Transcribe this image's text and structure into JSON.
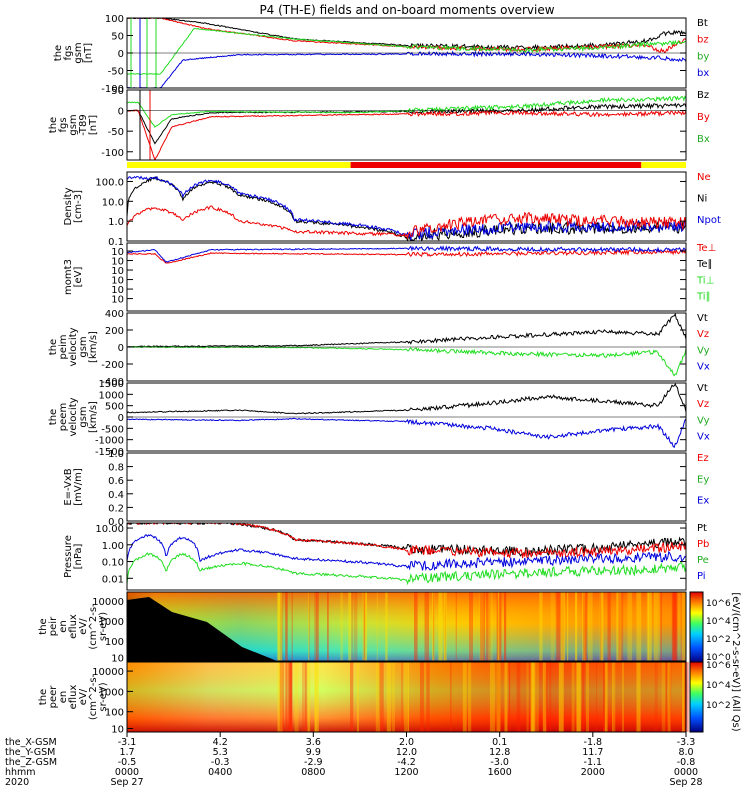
{
  "title": "P4 (TH-E) fields and on-board moments overview",
  "colors": {
    "black": "#000000",
    "red": "#ee0000",
    "green": "#22dd22",
    "blue": "#0000dd",
    "yellow": "#ffff00",
    "barred": "#ee0000"
  },
  "chart_data": {
    "type": "line",
    "panels": [
      {
        "id": "fgs-gsm",
        "ylabel": [
          "the",
          "fgs",
          "gsm",
          "[nT]"
        ],
        "ylim": [
          -100,
          100
        ],
        "ticks": [
          "100",
          "50",
          "0",
          "-50",
          "-100"
        ],
        "tickvals": [
          100,
          50,
          0,
          -50,
          -100
        ],
        "log": false,
        "legend": [
          {
            "label": "Bt",
            "color": "#000000"
          },
          {
            "label": "bz",
            "color": "#ee0000"
          },
          {
            "label": "by",
            "color": "#22aa22"
          },
          {
            "label": "bx",
            "color": "#0000dd"
          }
        ],
        "series": [
          {
            "name": "Bt",
            "color": "#000000",
            "t": [
              0.06,
              0.14,
              0.3,
              0.5,
              0.7,
              0.85,
              0.93,
              0.96,
              1.0
            ],
            "y": [
              100,
              85,
              40,
              22,
              15,
              22,
              35,
              55,
              60
            ]
          },
          {
            "name": "bz",
            "color": "#ee0000",
            "t": [
              0.06,
              0.14,
              0.3,
              0.5,
              0.7,
              0.85,
              0.93,
              0.96,
              1.0
            ],
            "y": [
              100,
              70,
              35,
              18,
              10,
              18,
              20,
              5,
              40
            ]
          },
          {
            "name": "by",
            "color": "#22dd22",
            "t": [
              0.06,
              0.12,
              0.3,
              0.5,
              0.7,
              0.85,
              0.93,
              1.0
            ],
            "y": [
              -60,
              70,
              40,
              18,
              8,
              15,
              25,
              30
            ]
          },
          {
            "name": "bx",
            "color": "#0000dd",
            "t": [
              0.06,
              0.1,
              0.2,
              0.5,
              0.7,
              0.85,
              0.93,
              1.0
            ],
            "y": [
              -100,
              -20,
              -5,
              -3,
              -2,
              -8,
              -12,
              -20
            ]
          }
        ]
      },
      {
        "id": "fgs-gsm-reduced",
        "ylabel": [
          "the",
          "fgs",
          "gsm",
          "-T89",
          "[nT]"
        ],
        "ylim": [
          -120,
          50
        ],
        "ticks": [
          "50",
          "0",
          "-50",
          "-100"
        ],
        "tickvals": [
          50,
          0,
          -50,
          -100
        ],
        "log": false,
        "legend": [
          {
            "label": "Bz",
            "color": "#000000"
          },
          {
            "label": "By",
            "color": "#ee0000"
          },
          {
            "label": "Bx",
            "color": "#22aa22"
          }
        ],
        "series": [
          {
            "name": "Bz",
            "color": "#000000",
            "t": [
              0.02,
              0.05,
              0.08,
              0.15,
              0.4,
              0.7,
              0.85,
              1.0
            ],
            "y": [
              0,
              -80,
              -20,
              -5,
              -3,
              0,
              10,
              12
            ]
          },
          {
            "name": "By",
            "color": "#ee0000",
            "t": [
              0.02,
              0.05,
              0.08,
              0.15,
              0.4,
              0.7,
              0.85,
              1.0
            ],
            "y": [
              0,
              -120,
              -40,
              -15,
              -10,
              -5,
              -10,
              -5
            ]
          },
          {
            "name": "Bx",
            "color": "#22dd22",
            "t": [
              0.02,
              0.05,
              0.08,
              0.15,
              0.4,
              0.7,
              0.85,
              1.0
            ],
            "y": [
              20,
              -40,
              -10,
              -2,
              -5,
              10,
              25,
              30
            ]
          }
        ]
      },
      {
        "id": "density",
        "ylabel": [
          "Density",
          "[cm-3]"
        ],
        "ylim": [
          0.1,
          300
        ],
        "ticks": [
          "100.0",
          "10.0",
          "1.0",
          "0.1"
        ],
        "tickvals": [
          100,
          10,
          1,
          0.1
        ],
        "log": true,
        "legend": [
          {
            "label": "Ne",
            "color": "#ee0000"
          },
          {
            "label": "Ni",
            "color": "#000000"
          },
          {
            "label": "Npot",
            "color": "#0000dd"
          }
        ],
        "series": [
          {
            "name": "Ni",
            "color": "#000000",
            "t": [
              0.0,
              0.05,
              0.1,
              0.15,
              0.2,
              0.3,
              0.5,
              0.7,
              1.0
            ],
            "y": [
              2,
              150,
              10,
              100,
              20,
              1,
              0.15,
              0.4,
              0.5
            ]
          },
          {
            "name": "Npot",
            "color": "#0000dd",
            "t": [
              0.05,
              0.1,
              0.15,
              0.2,
              0.3,
              0.5,
              0.7,
              1.0
            ],
            "y": [
              150,
              20,
              120,
              25,
              1.2,
              0.2,
              0.5,
              0.6
            ]
          },
          {
            "name": "Ne",
            "color": "#ee0000",
            "t": [
              0.0,
              0.05,
              0.1,
              0.15,
              0.2,
              0.3,
              0.5,
              0.6,
              0.7,
              0.85,
              1.0
            ],
            "y": [
              0.5,
              5,
              1,
              5,
              1,
              0.3,
              0.2,
              0.8,
              1.5,
              1.0,
              0.8
            ]
          }
        ]
      },
      {
        "id": "mom-temp",
        "ylabel": [
          "momt3",
          "[eV]"
        ],
        "ylim": [
          0,
          1
        ],
        "ticks": [
          "10",
          "10",
          "10",
          "10",
          "10",
          "10"
        ],
        "tickvals": [
          1,
          0.86,
          0.72,
          0.58,
          0.44,
          0.3
        ],
        "log": false,
        "legend": [
          {
            "label": "Te⊥",
            "color": "#ee0000"
          },
          {
            "label": "Te∥",
            "color": "#000000"
          },
          {
            "label": "Ti⊥",
            "color": "#22dd22"
          },
          {
            "label": "Ti∥",
            "color": "#22dd22"
          }
        ],
        "series": [
          {
            "name": "Te",
            "color": "#ee0000",
            "t": [
              0.0,
              0.05,
              0.07,
              0.15,
              0.5,
              1.0
            ],
            "y": [
              0.84,
              0.84,
              0.7,
              0.85,
              0.83,
              0.87
            ]
          },
          {
            "name": "Ti",
            "color": "#0000dd",
            "t": [
              0.0,
              0.05,
              0.07,
              0.15,
              0.5,
              1.0
            ],
            "y": [
              0.86,
              0.9,
              0.72,
              0.9,
              0.92,
              0.9
            ]
          }
        ]
      },
      {
        "id": "peim-velocity",
        "ylabel": [
          "the",
          "peim",
          "velocity",
          "gsm",
          "[km/s]"
        ],
        "ylim": [
          -400,
          400
        ],
        "ticks": [
          "400",
          "200",
          "0",
          "-200",
          "-400"
        ],
        "tickvals": [
          400,
          200,
          0,
          -200,
          -400
        ],
        "log": false,
        "legend": [
          {
            "label": "Vt",
            "color": "#000000"
          },
          {
            "label": "Vz",
            "color": "#ee0000"
          },
          {
            "label": "Vy",
            "color": "#22aa22"
          },
          {
            "label": "Vx",
            "color": "#0000dd"
          }
        ],
        "series": [
          {
            "name": "Vt",
            "color": "#000000",
            "t": [
              0.0,
              0.3,
              0.5,
              0.7,
              0.85,
              0.95,
              0.98,
              1.0
            ],
            "y": [
              5,
              15,
              60,
              130,
              180,
              150,
              380,
              100
            ]
          },
          {
            "name": "Vy",
            "color": "#22dd22",
            "t": [
              0.0,
              0.3,
              0.5,
              0.7,
              0.85,
              0.95,
              0.98,
              1.0
            ],
            "y": [
              0,
              -5,
              -30,
              -80,
              -100,
              -60,
              -340,
              -40
            ]
          }
        ]
      },
      {
        "id": "peem-velocity",
        "ylabel": [
          "the",
          "peem",
          "velocity",
          "gsm",
          "[km/s]"
        ],
        "ylim": [
          -1500,
          1500
        ],
        "ticks": [
          "1500",
          "1000",
          "500",
          "0",
          "-500",
          "-1000",
          "-1500"
        ],
        "tickvals": [
          1500,
          1000,
          500,
          0,
          -500,
          -1000,
          -1500
        ],
        "log": false,
        "legend": [
          {
            "label": "Vt",
            "color": "#000000"
          },
          {
            "label": "Vz",
            "color": "#ee0000"
          },
          {
            "label": "Vy",
            "color": "#22aa22"
          },
          {
            "label": "Vx",
            "color": "#0000dd"
          }
        ],
        "series": [
          {
            "name": "Vt",
            "color": "#000000",
            "t": [
              0.0,
              0.2,
              0.3,
              0.5,
              0.65,
              0.75,
              0.85,
              0.95,
              0.98,
              1.0
            ],
            "y": [
              200,
              300,
              150,
              300,
              600,
              900,
              700,
              500,
              1500,
              300
            ]
          },
          {
            "name": "Vx",
            "color": "#0000dd",
            "t": [
              0.0,
              0.2,
              0.3,
              0.5,
              0.65,
              0.75,
              0.85,
              0.95,
              0.98,
              1.0
            ],
            "y": [
              -100,
              -150,
              -80,
              -200,
              -500,
              -900,
              -600,
              -400,
              -1300,
              -100
            ]
          }
        ]
      },
      {
        "id": "e-field",
        "ylabel": [
          "E=-VxB",
          "[mV/m]"
        ],
        "ylim": [
          0,
          1
        ],
        "ticks": [
          "1.0",
          "0.8",
          "0.6",
          "0.4",
          "0.2",
          "0.0"
        ],
        "tickvals": [
          1.0,
          0.8,
          0.6,
          0.4,
          0.2,
          0.0
        ],
        "log": false,
        "legend": [
          {
            "label": "Ez",
            "color": "#ee0000"
          },
          {
            "label": "Ey",
            "color": "#22aa22"
          },
          {
            "label": "Ex",
            "color": "#0000dd"
          }
        ],
        "series": []
      },
      {
        "id": "pressure",
        "ylabel": [
          "Pressure",
          "[nPa]"
        ],
        "ylim": [
          0.002,
          20
        ],
        "ticks": [
          "10.00",
          "1.00",
          "0.10",
          "0.01"
        ],
        "tickvals": [
          10,
          1,
          0.1,
          0.01
        ],
        "log": true,
        "legend": [
          {
            "label": "Pt",
            "color": "#000000"
          },
          {
            "label": "Pb",
            "color": "#ee0000"
          },
          {
            "label": "Pe",
            "color": "#22aa22"
          },
          {
            "label": "Pi",
            "color": "#0000dd"
          }
        ],
        "series": [
          {
            "name": "Pt",
            "color": "#000000",
            "t": [
              0.18,
              0.3,
              0.5,
              0.7,
              0.85,
              1.0
            ],
            "y": [
              20,
              2,
              0.6,
              0.4,
              0.6,
              1.5
            ]
          },
          {
            "name": "Pb",
            "color": "#ee0000",
            "t": [
              0.18,
              0.3,
              0.5,
              0.7,
              0.85,
              1.0
            ],
            "y": [
              20,
              2,
              0.5,
              0.3,
              0.4,
              0.8
            ]
          },
          {
            "name": "Pi",
            "color": "#0000dd",
            "t": [
              0.0,
              0.04,
              0.07,
              0.1,
              0.13,
              0.2,
              0.3,
              0.5,
              0.7,
              1.0
            ],
            "y": [
              0.1,
              4,
              0.1,
              3,
              0.1,
              0.5,
              0.15,
              0.05,
              0.1,
              0.2
            ]
          },
          {
            "name": "Pe",
            "color": "#22dd22",
            "t": [
              0.0,
              0.04,
              0.07,
              0.1,
              0.13,
              0.2,
              0.3,
              0.5,
              0.7,
              0.9,
              1.0
            ],
            "y": [
              0.005,
              0.3,
              0.02,
              0.3,
              0.03,
              0.08,
              0.02,
              0.008,
              0.02,
              0.03,
              0.05
            ]
          }
        ]
      },
      {
        "id": "peir-eflux",
        "type": "heatmap",
        "ylabel": [
          "the",
          "peir",
          "en",
          "eflux",
          "eV/",
          "(cm^2-s-",
          "sr-eV)"
        ],
        "ticks": [
          "10000",
          "1000",
          "100",
          "10"
        ]
      },
      {
        "id": "peer-eflux",
        "type": "heatmap",
        "ylabel": [
          "the",
          "peer",
          "en",
          "eflux",
          "eV/",
          "(cm^2-s-",
          "sr-eV)"
        ],
        "ticks": [
          "10000",
          "1000",
          "100",
          "10"
        ]
      }
    ],
    "colorbar": {
      "label": "[eV/(cm^2-s-sr-eV)] (All Qs)",
      "ticks_top": [
        "10^6",
        "10^4",
        "10^2",
        "10^0"
      ],
      "ticks_bottom": [
        "10^6",
        "10^4",
        "10^2"
      ]
    },
    "xaxis": {
      "row_labels": [
        "the_X-GSM",
        "the_Y-GSM",
        "the_Z-GSM",
        "hhmm",
        "2020"
      ],
      "ticks": [
        {
          "t": 0.0,
          "X": "-3.1",
          "Y": "1.7",
          "Z": "-0.5",
          "hhmm": "0000",
          "date": "Sep 27"
        },
        {
          "t": 0.1667,
          "X": "4.2",
          "Y": "5.3",
          "Z": "-0.3",
          "hhmm": "0400",
          "date": ""
        },
        {
          "t": 0.3333,
          "X": "3.6",
          "Y": "9.9",
          "Z": "-2.9",
          "hhmm": "0800",
          "date": ""
        },
        {
          "t": 0.5,
          "X": "2.0",
          "Y": "12.0",
          "Z": "-4.2",
          "hhmm": "1200",
          "date": ""
        },
        {
          "t": 0.6667,
          "X": "0.1",
          "Y": "12.8",
          "Z": "-3.0",
          "hhmm": "1600",
          "date": ""
        },
        {
          "t": 0.8333,
          "X": "-1.8",
          "Y": "11.7",
          "Z": "-1.1",
          "hhmm": "2000",
          "date": ""
        },
        {
          "t": 1.0,
          "X": "-3.3",
          "Y": "8.0",
          "Z": "-0.8",
          "hhmm": "0000",
          "date": "Sep 28"
        }
      ]
    },
    "mode_bar": [
      {
        "from": 0.0,
        "to": 0.4,
        "color": "#ffff00"
      },
      {
        "from": 0.4,
        "to": 0.92,
        "color": "#ee0000"
      },
      {
        "from": 0.92,
        "to": 1.0,
        "color": "#ffff00"
      }
    ]
  }
}
